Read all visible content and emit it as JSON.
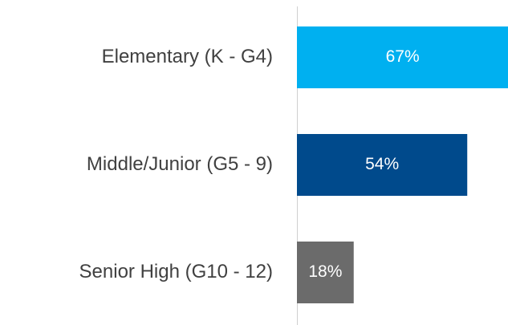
{
  "chart_data": {
    "type": "bar",
    "orientation": "horizontal",
    "categories": [
      "Elementary (K - G4)",
      "Middle/Junior (G5 - 9)",
      "Senior High (G10 - 12)"
    ],
    "values": [
      67,
      54,
      18
    ],
    "value_labels": [
      "67%",
      "54%",
      "18%"
    ],
    "colors": [
      "#00b0f0",
      "#004a8c",
      "#6b6b6b"
    ]
  }
}
